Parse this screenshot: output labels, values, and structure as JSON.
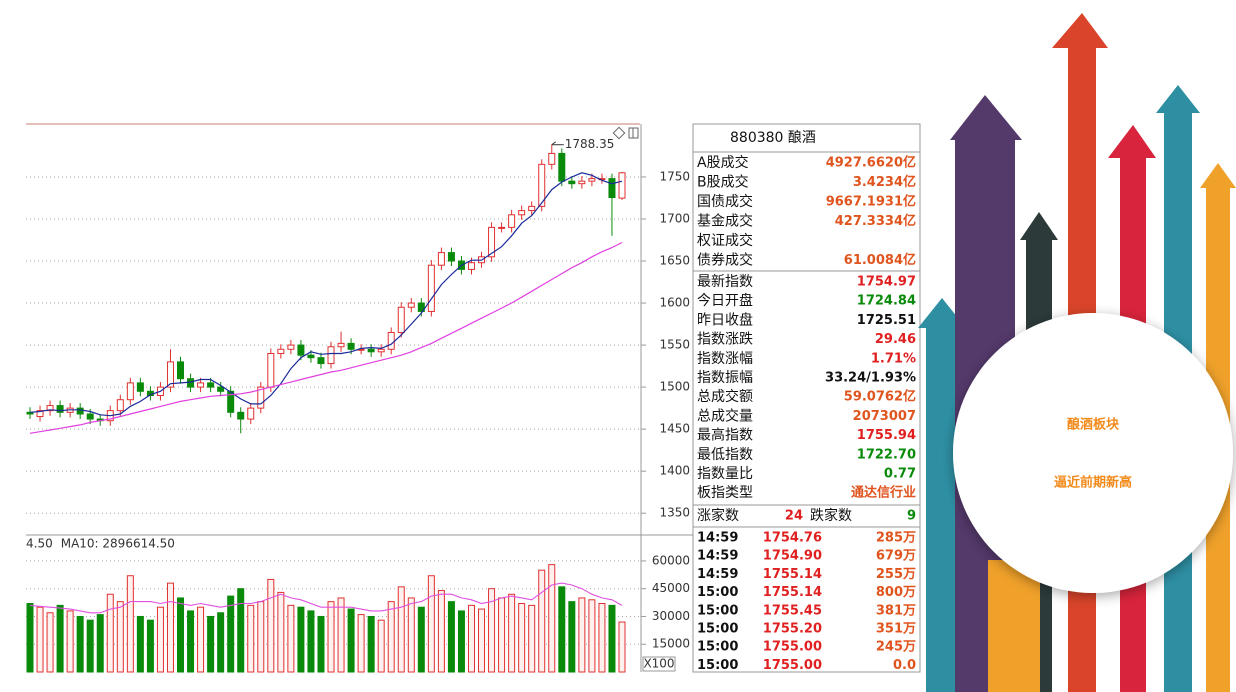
{
  "chart_data": [
    {
      "type": "candlestick",
      "ylim": [
        1330,
        1813
      ],
      "yticks": [
        1350,
        1400,
        1450,
        1500,
        1550,
        1600,
        1650,
        1700,
        1750
      ],
      "grid": true,
      "up_color": "#e03030",
      "down_color": "#0a8a0a",
      "open": [
        1470,
        1465,
        1472,
        1478,
        1470,
        1475,
        1468,
        1462,
        1460,
        1472,
        1485,
        1505,
        1495,
        1490,
        1500,
        1530,
        1510,
        1500,
        1505,
        1500,
        1495,
        1470,
        1462,
        1475,
        1500,
        1540,
        1545,
        1550,
        1538,
        1535,
        1528,
        1548,
        1552,
        1545,
        1545,
        1542,
        1545,
        1565,
        1595,
        1600,
        1590,
        1645,
        1660,
        1650,
        1640,
        1648,
        1655,
        1690,
        1690,
        1705,
        1710,
        1715,
        1765,
        1778,
        1745,
        1742,
        1745,
        1748,
        1748,
        1724.84
      ],
      "high": [
        1476,
        1478,
        1484,
        1484,
        1481,
        1481,
        1474,
        1468,
        1478,
        1491,
        1511,
        1511,
        1501,
        1506,
        1545,
        1536,
        1516,
        1511,
        1511,
        1506,
        1501,
        1476,
        1481,
        1506,
        1546,
        1551,
        1556,
        1556,
        1544,
        1541,
        1554,
        1566,
        1558,
        1551,
        1551,
        1551,
        1571,
        1601,
        1606,
        1606,
        1651,
        1666,
        1666,
        1656,
        1654,
        1661,
        1696,
        1696,
        1711,
        1716,
        1721,
        1771,
        1788.35,
        1784,
        1751,
        1751,
        1754,
        1754,
        1754,
        1755.94
      ],
      "low": [
        1462,
        1459,
        1466,
        1464,
        1464,
        1462,
        1456,
        1454,
        1454,
        1466,
        1479,
        1489,
        1484,
        1484,
        1494,
        1504,
        1494,
        1494,
        1494,
        1489,
        1464,
        1445,
        1456,
        1469,
        1494,
        1534,
        1539,
        1532,
        1529,
        1522,
        1522,
        1542,
        1539,
        1539,
        1536,
        1536,
        1539,
        1559,
        1589,
        1584,
        1584,
        1639,
        1644,
        1634,
        1634,
        1642,
        1649,
        1684,
        1684,
        1699,
        1704,
        1709,
        1759,
        1739,
        1736,
        1736,
        1739,
        1742,
        1680,
        1722.7
      ],
      "close": [
        1468,
        1472,
        1478,
        1470,
        1475,
        1468,
        1462,
        1460,
        1472,
        1485,
        1505,
        1495,
        1490,
        1500,
        1530,
        1510,
        1500,
        1505,
        1500,
        1495,
        1470,
        1462,
        1475,
        1500,
        1540,
        1545,
        1550,
        1538,
        1535,
        1528,
        1548,
        1552,
        1545,
        1545,
        1542,
        1545,
        1565,
        1595,
        1600,
        1590,
        1645,
        1660,
        1650,
        1640,
        1648,
        1655,
        1690,
        1690,
        1705,
        1710,
        1715,
        1765,
        1778,
        1745,
        1742,
        1745,
        1748,
        1748,
        1725.51,
        1754.97
      ],
      "ma_lines": [
        {
          "color": "#1a2a9a",
          "values": [
            1470,
            1471,
            1473,
            1472,
            1473,
            1473,
            1471,
            1467,
            1466,
            1468,
            1477,
            1483,
            1491,
            1495,
            1504,
            1505,
            1506,
            1509,
            1509,
            1502,
            1494,
            1486,
            1480,
            1480,
            1490,
            1504,
            1522,
            1535,
            1542,
            1539,
            1540,
            1540,
            1542,
            1546,
            1547,
            1546,
            1551,
            1562,
            1575,
            1588,
            1605,
            1622,
            1634,
            1645,
            1651,
            1651,
            1659,
            1667,
            1680,
            1695,
            1704,
            1719,
            1735,
            1744,
            1750,
            1755,
            1752,
            1746,
            1742,
            1745
          ]
        },
        {
          "color": "#e040e0",
          "values": [
            1445,
            1447,
            1449,
            1451,
            1453,
            1455,
            1458,
            1460,
            1462,
            1465,
            1468,
            1471,
            1474,
            1477,
            1480,
            1483,
            1485,
            1487,
            1489,
            1490,
            1491,
            1492,
            1494,
            1497,
            1500,
            1503,
            1506,
            1509,
            1512,
            1515,
            1518,
            1520,
            1523,
            1526,
            1529,
            1532,
            1535,
            1538,
            1542,
            1547,
            1552,
            1558,
            1564,
            1570,
            1576,
            1582,
            1588,
            1594,
            1600,
            1607,
            1614,
            1621,
            1628,
            1635,
            1642,
            1648,
            1655,
            1661,
            1666,
            1672
          ]
        }
      ],
      "annotation_index": 52
    },
    {
      "type": "bar",
      "ylim": [
        0,
        74000
      ],
      "yticks": [
        15000,
        30000,
        45000,
        60000
      ],
      "grid": true,
      "axis_unit": "X100",
      "legend": [
        {
          "text": "4.50",
          "color": "#e020e0"
        },
        {
          "text": "MA10: 2896614.50",
          "color": "#777777"
        }
      ],
      "values": [
        37000,
        35000,
        32000,
        36000,
        33000,
        30000,
        28000,
        31000,
        42000,
        38000,
        52000,
        30000,
        28000,
        35000,
        48000,
        40000,
        33000,
        35000,
        30000,
        32000,
        41000,
        45000,
        36000,
        38000,
        50000,
        43000,
        36000,
        35000,
        33000,
        30000,
        38000,
        40000,
        34000,
        31000,
        30000,
        28000,
        38000,
        46000,
        40000,
        35000,
        52000,
        44000,
        38000,
        33000,
        36000,
        34000,
        45000,
        40000,
        42000,
        37000,
        36000,
        55000,
        58000,
        46000,
        38000,
        40000,
        39000,
        37000,
        36000,
        27000
      ],
      "ma_line": {
        "color": "#e050e0",
        "values": [
          36000,
          35500,
          35000,
          34500,
          34000,
          33000,
          32000,
          32000,
          34000,
          35000,
          38000,
          38000,
          38000,
          37000,
          38000,
          37000,
          36000,
          37000,
          36000,
          35000,
          36000,
          37000,
          37000,
          38000,
          40000,
          42000,
          40000,
          39000,
          37000,
          35000,
          35000,
          35000,
          35000,
          34000,
          33000,
          33000,
          34000,
          35000,
          37000,
          38000,
          41000,
          42000,
          42000,
          40000,
          39000,
          37000,
          38000,
          40000,
          41000,
          40000,
          39000,
          43000,
          47000,
          48000,
          47000,
          45000,
          42000,
          40000,
          39000,
          36000
        ]
      }
    }
  ],
  "panel": {
    "title": "880380 酿酒",
    "exchange_rows": [
      {
        "label": "A股成交",
        "value": "4927.6620亿",
        "color": "#e0541e"
      },
      {
        "label": "B股成交",
        "value": "3.4234亿",
        "color": "#e0541e"
      },
      {
        "label": "国债成交",
        "value": "9667.1931亿",
        "color": "#e0541e"
      },
      {
        "label": "基金成交",
        "value": "427.3334亿",
        "color": "#e0541e"
      },
      {
        "label": "权证成交"
      },
      {
        "label": "债券成交",
        "value": "61.0084亿",
        "color": "#e0541e"
      }
    ],
    "index_rows": [
      {
        "label": "最新指数",
        "value": "1754.97",
        "color": "#e02020"
      },
      {
        "label": "今日开盘",
        "value": "1724.84",
        "color": "#0a8a0a"
      },
      {
        "label": "昨日收盘",
        "value": "1725.51",
        "color": "#111111"
      },
      {
        "label": "指数涨跌",
        "value": "29.46",
        "color": "#e02020"
      },
      {
        "label": "指数涨幅",
        "value": "1.71%",
        "color": "#e02020"
      },
      {
        "label": "指数振幅",
        "value": "33.24/1.93%",
        "color": "#111111"
      },
      {
        "label": "总成交额",
        "value": "59.0762亿",
        "color": "#e0541e"
      },
      {
        "label": "总成交量",
        "value": "2073007",
        "color": "#e0541e"
      },
      {
        "label": "最高指数",
        "value": "1755.94",
        "color": "#e02020"
      },
      {
        "label": "最低指数",
        "value": "1722.70",
        "color": "#0a8a0a"
      },
      {
        "label": "指数量比",
        "value": "0.77",
        "color": "#0a8a0a"
      },
      {
        "label": "板指类型",
        "value": "通达信行业",
        "color": "#e0541e"
      }
    ],
    "breadth": {
      "up_label": "涨家数",
      "up": "24",
      "down_label": "跌家数",
      "down": "9"
    },
    "ticks": [
      [
        "14:59",
        "1754.76",
        "285万"
      ],
      [
        "14:59",
        "1754.90",
        "679万"
      ],
      [
        "14:59",
        "1755.14",
        "255万"
      ],
      [
        "15:00",
        "1755.14",
        "800万"
      ],
      [
        "15:00",
        "1755.45",
        "381万"
      ],
      [
        "15:00",
        "1755.20",
        "351万"
      ],
      [
        "15:00",
        "1755.00",
        "245万"
      ],
      [
        "15:00",
        "1755.00",
        "0.0"
      ]
    ]
  },
  "banner": {
    "lines": [
      "酿酒板块",
      "逼近前期新高"
    ],
    "color": "#f28a1a"
  }
}
